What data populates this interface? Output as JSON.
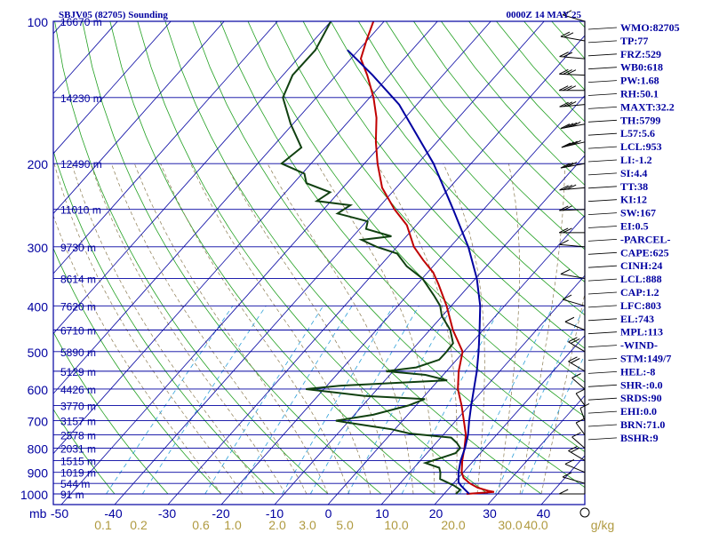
{
  "header": {
    "station": "SBJV05 (82705) Sounding",
    "datetime": "0000Z 14 MAY 25"
  },
  "indices": [
    "WMO:82705",
    "TP:77",
    "FRZ:529",
    "WB0:618",
    "PW:1.68",
    "RH:50.1",
    "MAXT:32.2",
    "TH:5799",
    "L57:5.6",
    "LCL:953",
    "LI:-1.2",
    "SI:4.4",
    "TT:38",
    "KI:12",
    "SW:167",
    "EI:0.5",
    "-PARCEL-",
    "CAPE:625",
    "CINH:24",
    "LCL:888",
    "CAP:1.2",
    "LFC:803",
    "EL:743",
    "MPL:113",
    "-WIND-",
    "STM:149/7",
    "HEL:-8",
    "SHR-:0.0",
    "SRDS:90",
    "EHI:0.0",
    "BRN:71.0",
    "BSHR:9"
  ],
  "chart_data": {
    "type": "line",
    "title": "SBJV05 (82705) Sounding",
    "xlabel": "",
    "ylabel": "mb",
    "x_unit": "°C",
    "pressure_levels": [
      100,
      200,
      300,
      400,
      500,
      600,
      700,
      800,
      900,
      1000
    ],
    "pressure_tick_labels": [
      "100",
      "200",
      "300",
      "400",
      "500",
      "600",
      "700",
      "800",
      "900",
      "1000"
    ],
    "temperature_ticks": [
      -50,
      -40,
      -30,
      -20,
      -10,
      0,
      10,
      20,
      30,
      40
    ],
    "temperature_tick_labels": [
      "-50",
      "-40",
      "-30",
      "-20",
      "-10",
      "0",
      "10",
      "20",
      "30",
      "40"
    ],
    "height_labels": [
      {
        "p": 100,
        "label": "16670 m"
      },
      {
        "p": 145,
        "label": "14230 m"
      },
      {
        "p": 200,
        "label": "12490 m"
      },
      {
        "p": 250,
        "label": "11010 m"
      },
      {
        "p": 300,
        "label": "9730 m"
      },
      {
        "p": 350,
        "label": "8614 m"
      },
      {
        "p": 400,
        "label": "7620 m"
      },
      {
        "p": 450,
        "label": "6710 m"
      },
      {
        "p": 500,
        "label": "5890 m"
      },
      {
        "p": 550,
        "label": "5129 m"
      },
      {
        "p": 600,
        "label": "4426 m"
      },
      {
        "p": 650,
        "label": "3770 m"
      },
      {
        "p": 700,
        "label": "3157 m"
      },
      {
        "p": 750,
        "label": "2578 m"
      },
      {
        "p": 800,
        "label": "2031 m"
      },
      {
        "p": 850,
        "label": "1515 m"
      },
      {
        "p": 900,
        "label": "1019 m"
      },
      {
        "p": 950,
        "label": "544 m"
      },
      {
        "p": 1000,
        "label": "91 m"
      }
    ],
    "mixing_ratio_labels": [
      "0.1",
      "0.2",
      "0.6",
      "1.0",
      "2.0",
      "3.0",
      "5.0",
      "10.0",
      "20.0",
      "30.0",
      "40.0",
      "g/kg"
    ],
    "series": [
      {
        "name": "Temperature",
        "color": "#c00000",
        "points": [
          [
            1000,
            26
          ],
          [
            990,
            30.8
          ],
          [
            985,
            29.5
          ],
          [
            970,
            27
          ],
          [
            950,
            24.8
          ],
          [
            925,
            22.7
          ],
          [
            900,
            21.4
          ],
          [
            850,
            19.5
          ],
          [
            800,
            17.8
          ],
          [
            750,
            15.8
          ],
          [
            700,
            13.0
          ],
          [
            650,
            10.0
          ],
          [
            600,
            6.5
          ],
          [
            550,
            3.6
          ],
          [
            500,
            1.0
          ],
          [
            450,
            -4.5
          ],
          [
            400,
            -9.8
          ],
          [
            360,
            -15.0
          ],
          [
            340,
            -18.0
          ],
          [
            320,
            -22.0
          ],
          [
            300,
            -26.0
          ],
          [
            270,
            -31.0
          ],
          [
            250,
            -36.0
          ],
          [
            225,
            -42.0
          ],
          [
            200,
            -47.0
          ],
          [
            180,
            -51.0
          ],
          [
            160,
            -55.0
          ],
          [
            145,
            -59.0
          ],
          [
            130,
            -64.0
          ],
          [
            120,
            -68.0
          ],
          [
            110,
            -70.0
          ],
          [
            100,
            -72.0
          ]
        ]
      },
      {
        "name": "Dewpoint",
        "color": "#104010",
        "points": [
          [
            1000,
            24
          ],
          [
            980,
            24.1
          ],
          [
            960,
            22.2
          ],
          [
            930,
            18.5
          ],
          [
            900,
            17.4
          ],
          [
            880,
            16.4
          ],
          [
            860,
            13.0
          ],
          [
            840,
            15.0
          ],
          [
            820,
            17.0
          ],
          [
            800,
            17.0
          ],
          [
            780,
            15.5
          ],
          [
            760,
            13.5
          ],
          [
            745,
            5.0
          ],
          [
            730,
            1.0
          ],
          [
            720,
            -3.0
          ],
          [
            700,
            -11.0
          ],
          [
            680,
            -5.0
          ],
          [
            650,
            0.0
          ],
          [
            630,
            2.0
          ],
          [
            620,
            -10.0
          ],
          [
            600,
            -22.0
          ],
          [
            590,
            -16.0
          ],
          [
            575,
            3.0
          ],
          [
            560,
            -2.0
          ],
          [
            550,
            -10.0
          ],
          [
            540,
            -5.0
          ],
          [
            520,
            -2.0
          ],
          [
            500,
            -2.0
          ],
          [
            480,
            -2.2
          ],
          [
            450,
            -5.0
          ],
          [
            420,
            -9.0
          ],
          [
            400,
            -11.0
          ],
          [
            380,
            -14.0
          ],
          [
            350,
            -19.0
          ],
          [
            330,
            -24.0
          ],
          [
            310,
            -28.0
          ],
          [
            300,
            -33.0
          ],
          [
            290,
            -37.0
          ],
          [
            285,
            -32.0
          ],
          [
            275,
            -38.0
          ],
          [
            265,
            -39.0
          ],
          [
            255,
            -46.0
          ],
          [
            245,
            -45.0
          ],
          [
            240,
            -52.0
          ],
          [
            230,
            -51.0
          ],
          [
            220,
            -57.0
          ],
          [
            210,
            -59.0
          ],
          [
            200,
            -65.0
          ],
          [
            185,
            -64.0
          ],
          [
            165,
            -70.0
          ],
          [
            145,
            -76.0
          ],
          [
            130,
            -78.0
          ],
          [
            115,
            -78.0
          ],
          [
            100,
            -80.0
          ]
        ]
      },
      {
        "name": "Parcel",
        "color": "#0000a0",
        "points": [
          [
            1000,
            26.5
          ],
          [
            980,
            25.0
          ],
          [
            960,
            23.5
          ],
          [
            945,
            22.5
          ],
          [
            900,
            20.8
          ],
          [
            850,
            19.2
          ],
          [
            800,
            17.9
          ],
          [
            750,
            16.2
          ],
          [
            700,
            14.0
          ],
          [
            650,
            11.8
          ],
          [
            600,
            9.5
          ],
          [
            550,
            7.0
          ],
          [
            500,
            4.0
          ],
          [
            450,
            0.5
          ],
          [
            400,
            -3.5
          ],
          [
            350,
            -8.8
          ],
          [
            300,
            -15.8
          ],
          [
            250,
            -25.0
          ],
          [
            200,
            -36.5
          ],
          [
            150,
            -53.0
          ],
          [
            130,
            -63.0
          ],
          [
            115,
            -72.0
          ]
        ]
      }
    ],
    "wind_barbs": [
      {
        "p": 100,
        "dir": 60,
        "spd": 10
      },
      {
        "p": 110,
        "dir": 70,
        "spd": 15
      },
      {
        "p": 120,
        "dir": 80,
        "spd": 20
      },
      {
        "p": 130,
        "dir": 85,
        "spd": 25
      },
      {
        "p": 140,
        "dir": 90,
        "spd": 25
      },
      {
        "p": 150,
        "dir": 100,
        "spd": 30
      },
      {
        "p": 165,
        "dir": 110,
        "spd": 35
      },
      {
        "p": 180,
        "dir": 115,
        "spd": 35
      },
      {
        "p": 200,
        "dir": 110,
        "spd": 30
      },
      {
        "p": 225,
        "dir": 100,
        "spd": 25
      },
      {
        "p": 250,
        "dir": 95,
        "spd": 20
      },
      {
        "p": 280,
        "dir": 90,
        "spd": 15
      },
      {
        "p": 300,
        "dir": 80,
        "spd": 10
      },
      {
        "p": 350,
        "dir": 70,
        "spd": 10
      },
      {
        "p": 400,
        "dir": 60,
        "spd": 10
      },
      {
        "p": 450,
        "dir": 50,
        "spd": 10
      },
      {
        "p": 500,
        "dir": 40,
        "spd": 15
      },
      {
        "p": 550,
        "dir": 40,
        "spd": 15
      },
      {
        "p": 600,
        "dir": 30,
        "spd": 10
      },
      {
        "p": 650,
        "dir": 20,
        "spd": 10
      },
      {
        "p": 700,
        "dir": 10,
        "spd": 10
      },
      {
        "p": 750,
        "dir": 20,
        "spd": 10
      },
      {
        "p": 800,
        "dir": 30,
        "spd": 10
      },
      {
        "p": 850,
        "dir": 40,
        "spd": 15
      },
      {
        "p": 900,
        "dir": 50,
        "spd": 10
      },
      {
        "p": 950,
        "dir": 60,
        "spd": 10
      },
      {
        "p": 1000,
        "dir": 90,
        "spd": 5
      }
    ]
  }
}
